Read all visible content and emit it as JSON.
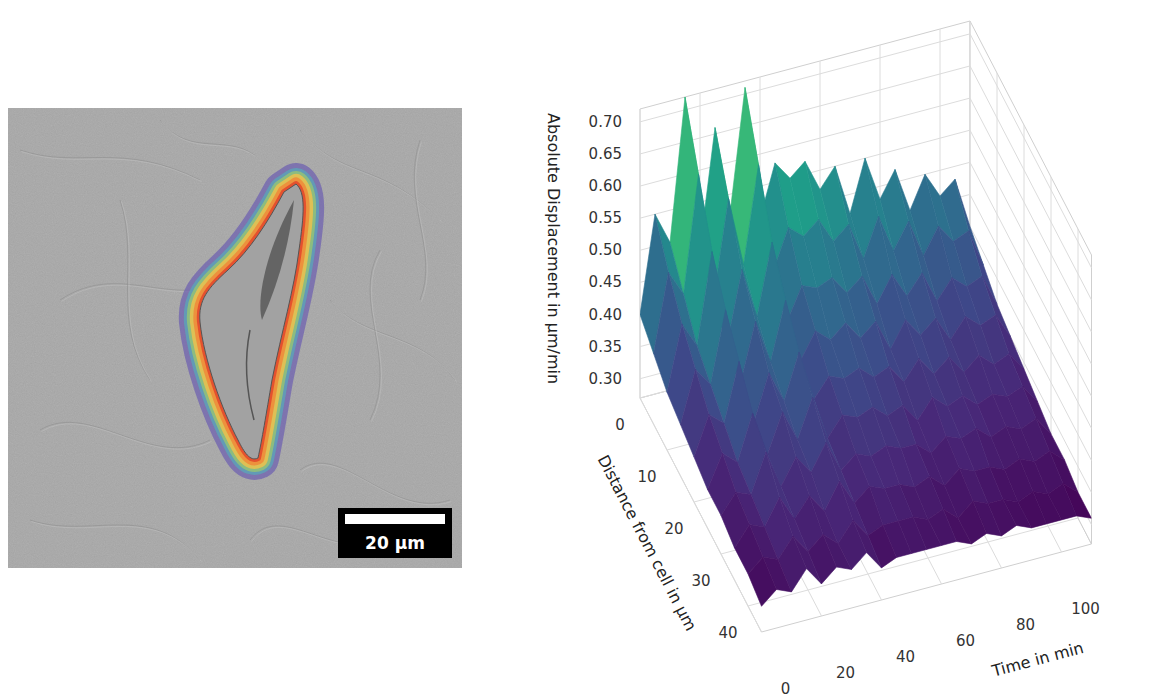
{
  "chart_data": {
    "type": "surface",
    "x_label": "Time in min",
    "y_label": "Distance from cell in µm",
    "z_label": "Absolute Displacement in µm/min",
    "x": [
      0,
      5,
      10,
      15,
      20,
      25,
      30,
      35,
      40,
      45,
      50,
      55,
      60,
      65,
      70,
      75,
      80,
      85,
      90,
      95,
      100,
      105,
      110
    ],
    "y": [
      0,
      5,
      10,
      15,
      20,
      25,
      30,
      35,
      40,
      45
    ],
    "z": [
      [
        0.4,
        0.55,
        0.5,
        0.72,
        0.48,
        0.66,
        0.52,
        0.71,
        0.5,
        0.58,
        0.55,
        0.57,
        0.52,
        0.55,
        0.47,
        0.55,
        0.48,
        0.52,
        0.45,
        0.5,
        0.46,
        0.48,
        0.4
      ],
      [
        0.38,
        0.5,
        0.46,
        0.64,
        0.44,
        0.59,
        0.48,
        0.63,
        0.46,
        0.52,
        0.5,
        0.52,
        0.48,
        0.5,
        0.44,
        0.5,
        0.44,
        0.48,
        0.42,
        0.46,
        0.43,
        0.44,
        0.38
      ],
      [
        0.36,
        0.46,
        0.42,
        0.56,
        0.41,
        0.52,
        0.44,
        0.55,
        0.42,
        0.47,
        0.46,
        0.47,
        0.44,
        0.46,
        0.41,
        0.45,
        0.41,
        0.44,
        0.39,
        0.42,
        0.4,
        0.41,
        0.36
      ],
      [
        0.35,
        0.43,
        0.4,
        0.51,
        0.39,
        0.48,
        0.41,
        0.5,
        0.4,
        0.44,
        0.42,
        0.44,
        0.41,
        0.43,
        0.38,
        0.42,
        0.39,
        0.41,
        0.37,
        0.4,
        0.38,
        0.39,
        0.35
      ],
      [
        0.34,
        0.4,
        0.38,
        0.47,
        0.37,
        0.44,
        0.39,
        0.46,
        0.38,
        0.41,
        0.4,
        0.41,
        0.39,
        0.4,
        0.37,
        0.4,
        0.37,
        0.39,
        0.36,
        0.38,
        0.36,
        0.37,
        0.34
      ],
      [
        0.33,
        0.38,
        0.36,
        0.43,
        0.36,
        0.42,
        0.37,
        0.43,
        0.36,
        0.39,
        0.38,
        0.39,
        0.37,
        0.38,
        0.35,
        0.38,
        0.36,
        0.37,
        0.35,
        0.36,
        0.35,
        0.36,
        0.33
      ],
      [
        0.33,
        0.36,
        0.35,
        0.41,
        0.35,
        0.39,
        0.36,
        0.4,
        0.35,
        0.37,
        0.36,
        0.37,
        0.36,
        0.36,
        0.34,
        0.36,
        0.35,
        0.36,
        0.34,
        0.35,
        0.34,
        0.35,
        0.32
      ],
      [
        0.32,
        0.35,
        0.34,
        0.38,
        0.34,
        0.37,
        0.34,
        0.38,
        0.34,
        0.36,
        0.35,
        0.35,
        0.34,
        0.35,
        0.33,
        0.35,
        0.34,
        0.34,
        0.33,
        0.34,
        0.33,
        0.34,
        0.32
      ],
      [
        0.32,
        0.34,
        0.33,
        0.36,
        0.33,
        0.35,
        0.33,
        0.36,
        0.33,
        0.34,
        0.34,
        0.34,
        0.33,
        0.34,
        0.32,
        0.34,
        0.33,
        0.33,
        0.32,
        0.33,
        0.32,
        0.33,
        0.31
      ],
      [
        0.31,
        0.33,
        0.32,
        0.35,
        0.32,
        0.34,
        0.33,
        0.35,
        0.32,
        0.33,
        0.33,
        0.33,
        0.33,
        0.33,
        0.32,
        0.33,
        0.32,
        0.33,
        0.32,
        0.32,
        0.32,
        0.32,
        0.31
      ]
    ],
    "xlim": [
      0,
      110
    ],
    "ylim": [
      0,
      45
    ],
    "zlim": [
      0.27,
      0.72
    ],
    "xticks": [
      0,
      20,
      40,
      60,
      80,
      100
    ],
    "yticks": [
      0,
      10,
      20,
      30,
      40
    ],
    "zticks": [
      {
        "value": 0.3,
        "label": "0.30"
      },
      0.35,
      {
        "value": 0.4,
        "label": "0.40"
      },
      0.45,
      {
        "value": 0.5,
        "label": "0.50"
      },
      0.55,
      {
        "value": 0.6,
        "label": "0.60"
      },
      0.65,
      {
        "value": 0.7,
        "label": "0.70"
      }
    ],
    "grid": true
  },
  "image": {
    "scale_bar": {
      "value": 20,
      "label": "20 µm"
    }
  }
}
